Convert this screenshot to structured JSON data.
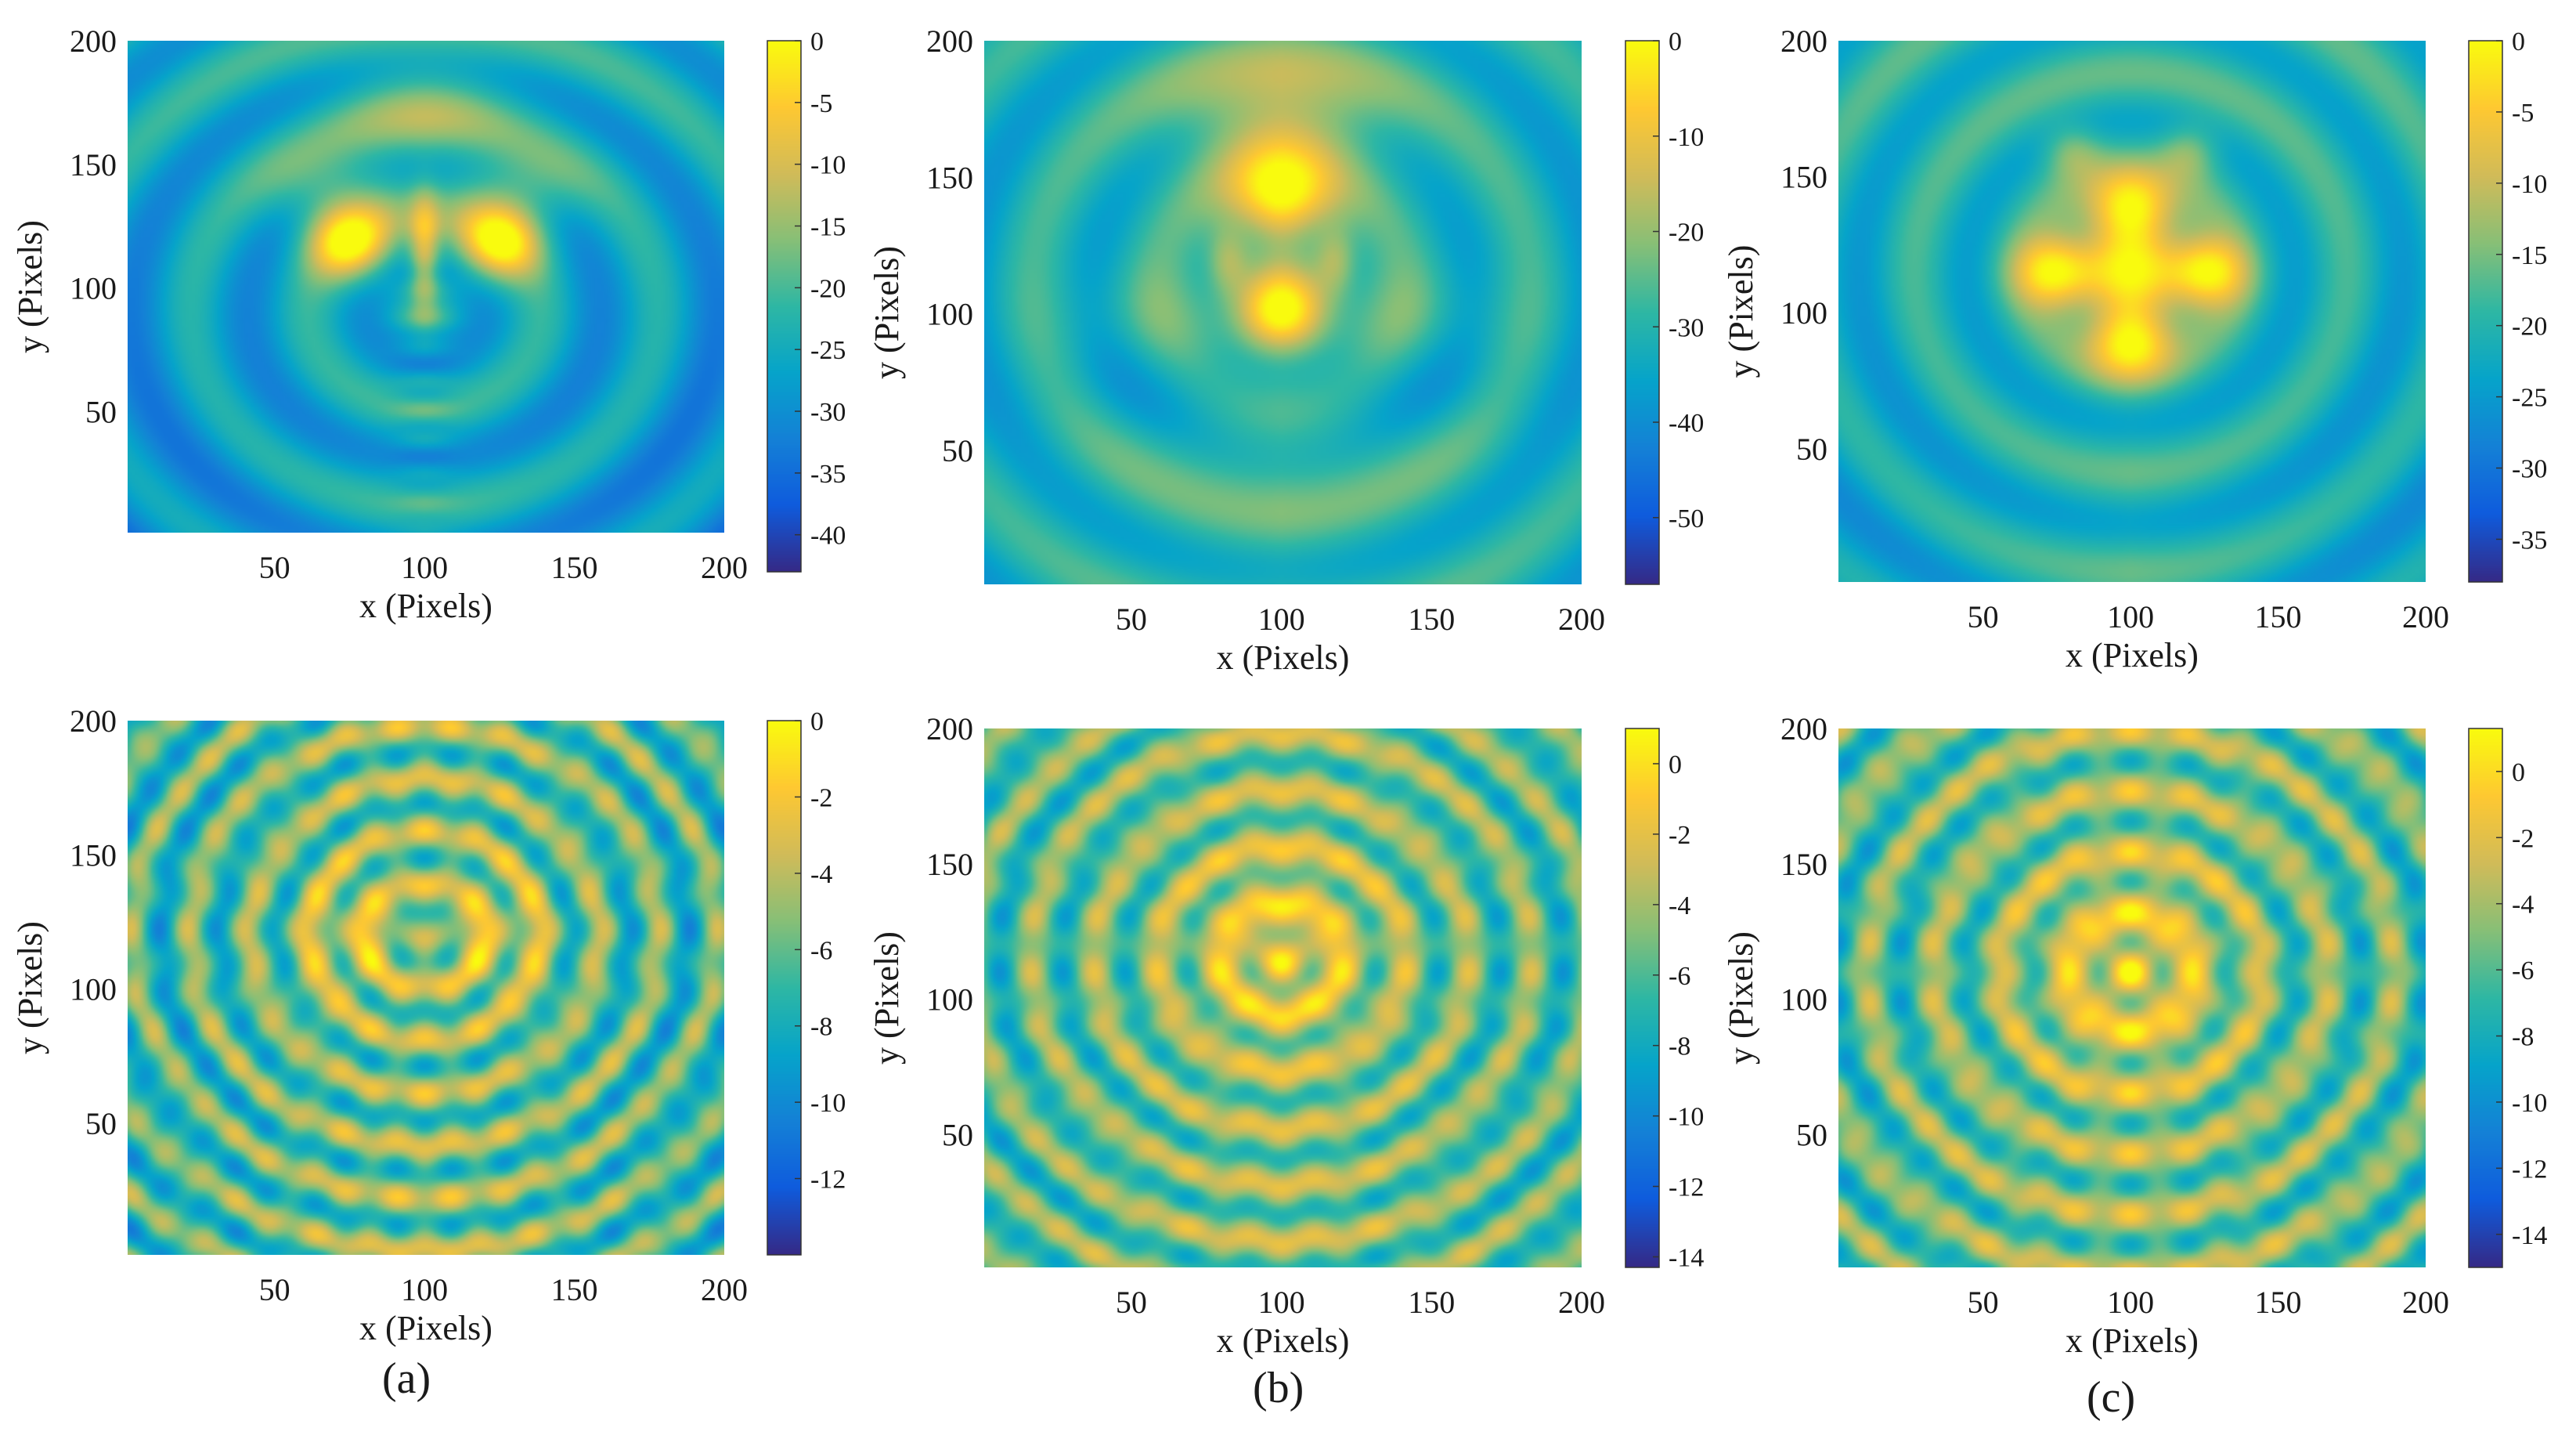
{
  "colors": {
    "colormap": "parula",
    "stops": [
      "#352a87",
      "#0f5cdd",
      "#1481d6",
      "#06a4ca",
      "#2eb7a4",
      "#87bf77",
      "#d1bb59",
      "#fec832",
      "#f9fb0e"
    ]
  },
  "chart_data": [
    {
      "type": "heatmap",
      "panel": "a",
      "row": 1,
      "xlabel": "x (Pixels)",
      "ylabel": "y (Pixels)",
      "xlim": [
        1,
        200
      ],
      "ylim": [
        1,
        200
      ],
      "xticks": [
        "50",
        "100",
        "150",
        "200"
      ],
      "yticks": [
        "50",
        "100",
        "150",
        "200"
      ],
      "colorbar": {
        "range": [
          -43,
          0
        ],
        "ticks": [
          "0",
          "-5",
          "-10",
          "-15",
          "-20",
          "-25",
          "-30",
          "-35",
          "-40"
        ]
      }
    },
    {
      "type": "heatmap",
      "panel": "b",
      "row": 1,
      "xlabel": "x (Pixels)",
      "ylabel": "y (Pixels)",
      "xlim": [
        1,
        200
      ],
      "ylim": [
        1,
        200
      ],
      "xticks": [
        "50",
        "100",
        "150",
        "200"
      ],
      "yticks": [
        "50",
        "100",
        "150",
        "200"
      ],
      "colorbar": {
        "range": [
          -57,
          0
        ],
        "ticks": [
          "0",
          "-10",
          "-20",
          "-30",
          "-40",
          "-50"
        ]
      }
    },
    {
      "type": "heatmap",
      "panel": "c",
      "row": 1,
      "xlabel": "x (Pixels)",
      "ylabel": "y (Pixels)",
      "xlim": [
        1,
        200
      ],
      "ylim": [
        1,
        200
      ],
      "xticks": [
        "50",
        "100",
        "150",
        "200"
      ],
      "yticks": [
        "50",
        "100",
        "150",
        "200"
      ],
      "colorbar": {
        "range": [
          -38,
          0
        ],
        "ticks": [
          "0",
          "-5",
          "-10",
          "-15",
          "-20",
          "-25",
          "-30",
          "-35"
        ]
      }
    },
    {
      "type": "heatmap",
      "panel": "a",
      "row": 2,
      "xlabel": "x (Pixels)",
      "ylabel": "y (Pixels)",
      "xlim": [
        1,
        200
      ],
      "ylim": [
        1,
        200
      ],
      "xticks": [
        "50",
        "100",
        "150",
        "200"
      ],
      "yticks": [
        "50",
        "100",
        "150",
        "200"
      ],
      "colorbar": {
        "range": [
          -14,
          0
        ],
        "ticks": [
          "0",
          "-2",
          "-4",
          "-6",
          "-8",
          "-10",
          "-12"
        ]
      }
    },
    {
      "type": "heatmap",
      "panel": "b",
      "row": 2,
      "xlabel": "x (Pixels)",
      "ylabel": "y (Pixels)",
      "xlim": [
        1,
        200
      ],
      "ylim": [
        1,
        200
      ],
      "xticks": [
        "50",
        "100",
        "150",
        "200"
      ],
      "yticks": [
        "50",
        "100",
        "150",
        "200"
      ],
      "colorbar": {
        "range": [
          -14.3,
          1
        ],
        "ticks": [
          "0",
          "-2",
          "-4",
          "-6",
          "-8",
          "-10",
          "-12",
          "-14"
        ]
      }
    },
    {
      "type": "heatmap",
      "panel": "c",
      "row": 2,
      "xlabel": "x (Pixels)",
      "ylabel": "y (Pixels)",
      "xlim": [
        1,
        200
      ],
      "ylim": [
        1,
        200
      ],
      "xticks": [
        "50",
        "100",
        "150",
        "200"
      ],
      "yticks": [
        "50",
        "100",
        "150",
        "200"
      ],
      "colorbar": {
        "range": [
          -15,
          1.3
        ],
        "ticks": [
          "0",
          "-2",
          "-4",
          "-6",
          "-8",
          "-10",
          "-12",
          "-14"
        ]
      }
    }
  ],
  "captions": [
    "(a)",
    "(b)",
    "(c)"
  ]
}
